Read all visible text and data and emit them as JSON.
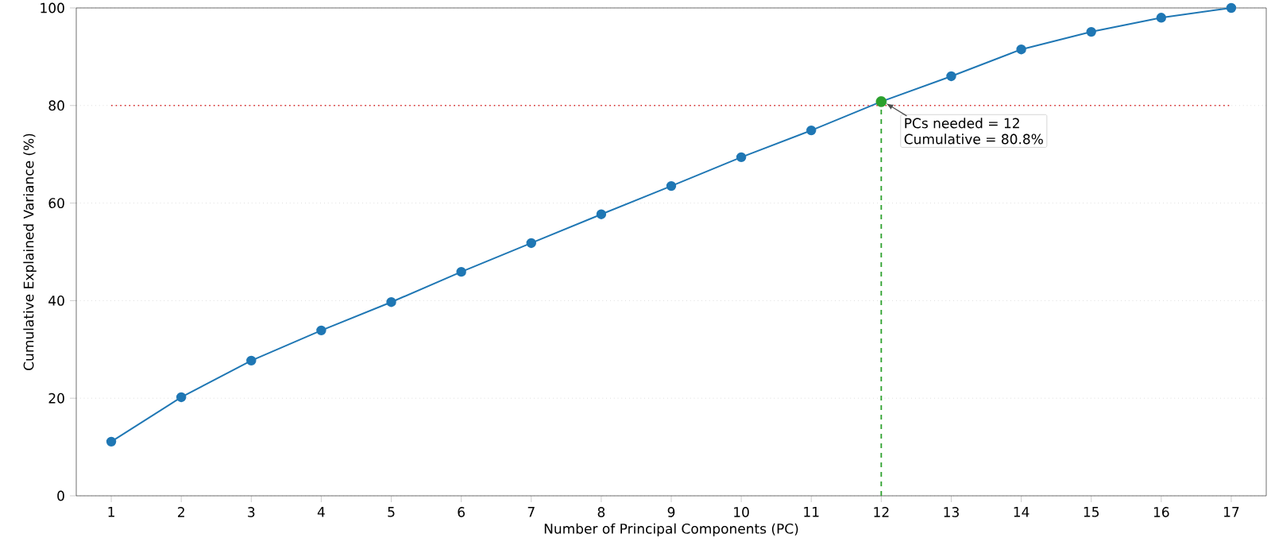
{
  "chart_data": {
    "type": "line",
    "xlabel": "Number of Principal Components (PC)",
    "ylabel": "Cumulative Explained Variance (%)",
    "x": [
      1,
      2,
      3,
      4,
      5,
      6,
      7,
      8,
      9,
      10,
      11,
      12,
      13,
      14,
      15,
      16,
      17
    ],
    "series": [
      {
        "color": "#1f77b4",
        "values": [
          11.1,
          20.2,
          27.7,
          33.9,
          39.7,
          45.9,
          51.8,
          57.7,
          63.5,
          69.4,
          74.9,
          80.8,
          86.0,
          91.5,
          95.1,
          98.0,
          100.0
        ]
      },
      {
        "type": "scatter",
        "color": "#2ca02c",
        "x": [
          12
        ],
        "values": [
          80.8
        ]
      }
    ],
    "xlim": [
      0.5,
      17.5
    ],
    "ylim": [
      0,
      100
    ],
    "xticks": [
      1,
      2,
      3,
      4,
      5,
      6,
      7,
      8,
      9,
      10,
      11,
      12,
      13,
      14,
      15,
      16,
      17
    ],
    "yticks": [
      0,
      20,
      40,
      60,
      80,
      100
    ],
    "ref_lines": [
      {
        "axis": "y",
        "value": 80,
        "color": "#d62728",
        "line_style": "dotted"
      },
      {
        "axis": "x",
        "value": 12,
        "color": "#2ca02c",
        "line_style": "dashed"
      }
    ],
    "annotations": [
      {
        "text": "PCs needed = 12",
        "x": 12,
        "y": 80.8
      },
      "Cumulative = 80.8%"
    ],
    "grid": "y",
    "marker": "circle"
  }
}
